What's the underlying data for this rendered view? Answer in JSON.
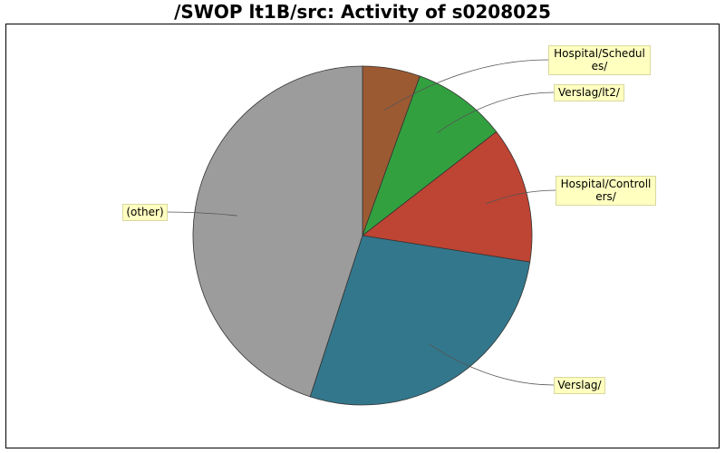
{
  "chart_data": {
    "type": "pie",
    "title": "/SWOP lt1B/src: Activity of s0208025",
    "slices": [
      {
        "label": "Hospital/Schedules/",
        "label_lines": [
          "Hospital/Schedul",
          "es/"
        ],
        "value": 5.5,
        "color": "#9c5a33"
      },
      {
        "label": "Verslag/lt2/",
        "label_lines": [
          "Verslag/lt2/"
        ],
        "value": 9.0,
        "color": "#33a040"
      },
      {
        "label": "Hospital/Controllers/",
        "label_lines": [
          "Hospital/Controll",
          "ers/"
        ],
        "value": 13.0,
        "color": "#be4433"
      },
      {
        "label": "Verslag/",
        "label_lines": [
          "Verslag/"
        ],
        "value": 27.5,
        "color": "#33778c"
      },
      {
        "label": "(other)",
        "label_lines": [
          "(other)"
        ],
        "value": 45.0,
        "color": "#9c9c9c"
      }
    ]
  }
}
